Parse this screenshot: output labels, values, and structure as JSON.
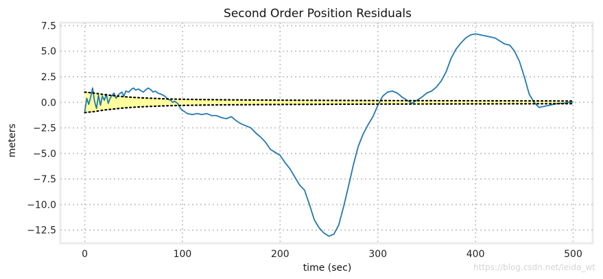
{
  "chart_data": {
    "type": "line",
    "title": "Second Order Position Residuals",
    "xlabel": "time (sec)",
    "ylabel": "meters",
    "xlim": [
      -25,
      520
    ],
    "ylim": [
      -13.8,
      7.8
    ],
    "xticks": [
      0,
      100,
      200,
      300,
      400,
      500
    ],
    "xtick_labels": [
      "0",
      "100",
      "200",
      "300",
      "400",
      "500"
    ],
    "yticks": [
      7.5,
      5.0,
      2.5,
      0.0,
      -2.5,
      -5.0,
      -7.5,
      -10.0,
      -12.5
    ],
    "ytick_labels": [
      "7.5",
      "5.0",
      "2.5",
      "0.0",
      "−2.5",
      "−5.0",
      "−7.5",
      "−10.0",
      "−12.5"
    ],
    "grid": true,
    "series": [
      {
        "kind": "line",
        "color": "#1f77b4",
        "x": [
          0,
          2,
          4,
          6,
          8,
          10,
          12,
          14,
          16,
          18,
          20,
          22,
          24,
          26,
          28,
          30,
          32,
          35,
          38,
          40,
          42,
          45,
          48,
          50,
          52,
          55,
          58,
          60,
          62,
          65,
          68,
          70,
          72,
          75,
          78,
          80,
          82,
          85,
          88,
          90,
          92,
          95,
          98,
          100,
          102,
          105,
          110,
          115,
          120,
          125,
          130,
          135,
          140,
          145,
          150,
          155,
          160,
          165,
          170,
          175,
          180,
          185,
          190,
          195,
          200,
          205,
          210,
          215,
          220,
          225,
          230,
          235,
          240,
          245,
          250,
          255,
          260,
          265,
          270,
          275,
          280,
          285,
          290,
          295,
          300,
          305,
          310,
          315,
          320,
          325,
          330,
          335,
          340,
          345,
          350,
          355,
          360,
          365,
          370,
          375,
          380,
          385,
          390,
          395,
          400,
          405,
          410,
          415,
          420,
          425,
          430,
          435,
          440,
          445,
          450,
          455,
          460,
          465,
          470,
          475,
          480,
          485,
          490,
          495,
          500
        ],
        "y": [
          -0.9,
          0.4,
          -0.2,
          0.5,
          1.4,
          0.1,
          -0.6,
          0.7,
          -0.3,
          0.6,
          0.2,
          0.8,
          -0.1,
          0.4,
          0.7,
          0.9,
          0.4,
          0.8,
          1.0,
          0.6,
          1.1,
          1.0,
          1.3,
          1.4,
          1.2,
          1.3,
          1.1,
          1.0,
          1.2,
          1.4,
          1.2,
          1.0,
          1.1,
          0.9,
          0.8,
          0.7,
          0.6,
          0.3,
          0.2,
          0.0,
          0.1,
          -0.1,
          -0.6,
          -0.8,
          -0.9,
          -1.1,
          -1.2,
          -1.1,
          -1.2,
          -1.1,
          -1.3,
          -1.3,
          -1.5,
          -1.6,
          -1.4,
          -1.8,
          -2.1,
          -2.3,
          -2.5,
          -3.0,
          -3.4,
          -3.9,
          -4.6,
          -4.9,
          -5.2,
          -5.9,
          -6.5,
          -7.3,
          -8.1,
          -8.6,
          -10.0,
          -11.5,
          -12.3,
          -12.8,
          -13.1,
          -12.9,
          -12.0,
          -10.2,
          -8.2,
          -6.1,
          -4.3,
          -3.1,
          -2.2,
          -1.4,
          -0.3,
          0.6,
          1.0,
          1.1,
          0.9,
          0.5,
          0.2,
          -0.1,
          0.2,
          0.5,
          0.9,
          1.1,
          1.5,
          2.1,
          3.0,
          4.3,
          5.2,
          5.8,
          6.3,
          6.6,
          6.7,
          6.6,
          6.5,
          6.4,
          6.3,
          6.0,
          5.7,
          5.6,
          5.0,
          4.0,
          2.5,
          0.8,
          0.0,
          -0.5,
          -0.4,
          -0.3,
          -0.2,
          -0.1,
          -0.1,
          0.0,
          0.0
        ]
      },
      {
        "kind": "band",
        "fill": "#ffff9d",
        "stroke": "#000000",
        "line_style": "dotted",
        "x": [
          0,
          10,
          20,
          30,
          40,
          50,
          60,
          70,
          80,
          90,
          100,
          120,
          150,
          200,
          250,
          300,
          350,
          400,
          450,
          500
        ],
        "upper": [
          1.0,
          0.9,
          0.75,
          0.65,
          0.55,
          0.48,
          0.43,
          0.39,
          0.35,
          0.32,
          0.3,
          0.27,
          0.24,
          0.21,
          0.19,
          0.17,
          0.16,
          0.15,
          0.14,
          0.13
        ]
      }
    ],
    "watermark": "https://blog.csdn.net/leida_wt"
  }
}
